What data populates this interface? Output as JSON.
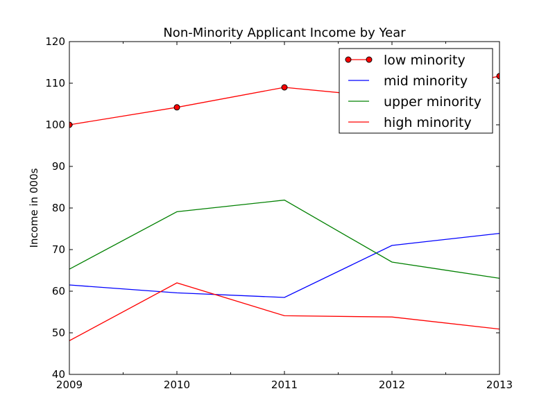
{
  "chart_data": {
    "type": "line",
    "title": "Non-Minority Applicant Income by Year",
    "xlabel": "",
    "ylabel": "Income in 000s",
    "x": [
      2009,
      2010,
      2011,
      2012,
      2013
    ],
    "xlim": [
      2009,
      2013
    ],
    "ylim": [
      40,
      120
    ],
    "xticks": [
      "2009",
      "2010",
      "2011",
      "2012",
      "2013"
    ],
    "yticks": [
      "40",
      "50",
      "60",
      "70",
      "80",
      "90",
      "100",
      "110",
      "120"
    ],
    "grid": false,
    "legend_position": "top-right",
    "series": [
      {
        "name": "low minority",
        "color": "#ff0000",
        "marker": "circle",
        "values": [
          100.0,
          104.2,
          109.0,
          106.5,
          111.7
        ]
      },
      {
        "name": "mid minority",
        "color": "#0000ff",
        "marker": "none",
        "values": [
          61.5,
          59.6,
          58.5,
          71.0,
          73.9
        ]
      },
      {
        "name": "upper minority",
        "color": "#008000",
        "marker": "none",
        "values": [
          65.3,
          79.1,
          81.9,
          67.0,
          63.1
        ]
      },
      {
        "name": "high minority",
        "color": "#ff0000",
        "marker": "none",
        "values": [
          48.1,
          62.0,
          54.1,
          53.8,
          50.9
        ]
      }
    ]
  }
}
